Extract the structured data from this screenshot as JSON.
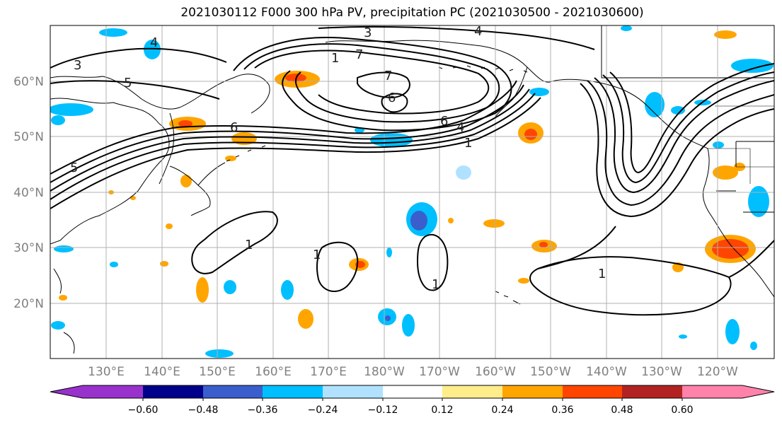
{
  "title": "2021030112 F000 300 hPa PV, precipitation PC (2021030500 - 2021030600)",
  "lat_labels": [
    "60°N",
    "50°N",
    "40°N",
    "30°N",
    "20°N"
  ],
  "lon_labels": [
    "130°E",
    "140°E",
    "150°E",
    "160°E",
    "170°E",
    "180°W",
    "170°W",
    "160°W",
    "150°W",
    "140°W",
    "130°W",
    "120°W"
  ],
  "colorbar": {
    "tick_labels": [
      "−0.60",
      "−0.48",
      "−0.36",
      "−0.24",
      "−0.12",
      "0.12",
      "0.24",
      "0.36",
      "0.48",
      "0.60"
    ],
    "colors": [
      "#9932cc",
      "#00008b",
      "#3a5fcd",
      "#00bfff",
      "#b0e2ff",
      "#ffffff",
      "#ffec8b",
      "#ffa500",
      "#ff4500",
      "#b22222",
      "#ff82ab"
    ]
  },
  "pv_contour_labels": [
    "3",
    "3",
    "4",
    "4",
    "5",
    "5",
    "6",
    "6",
    "7",
    "7",
    "1",
    "1",
    "1",
    "1",
    "1",
    "1",
    "4",
    "6"
  ],
  "colors": {
    "contour": "#000000",
    "coast": "#000000",
    "grid": "#b0b0b0"
  }
}
